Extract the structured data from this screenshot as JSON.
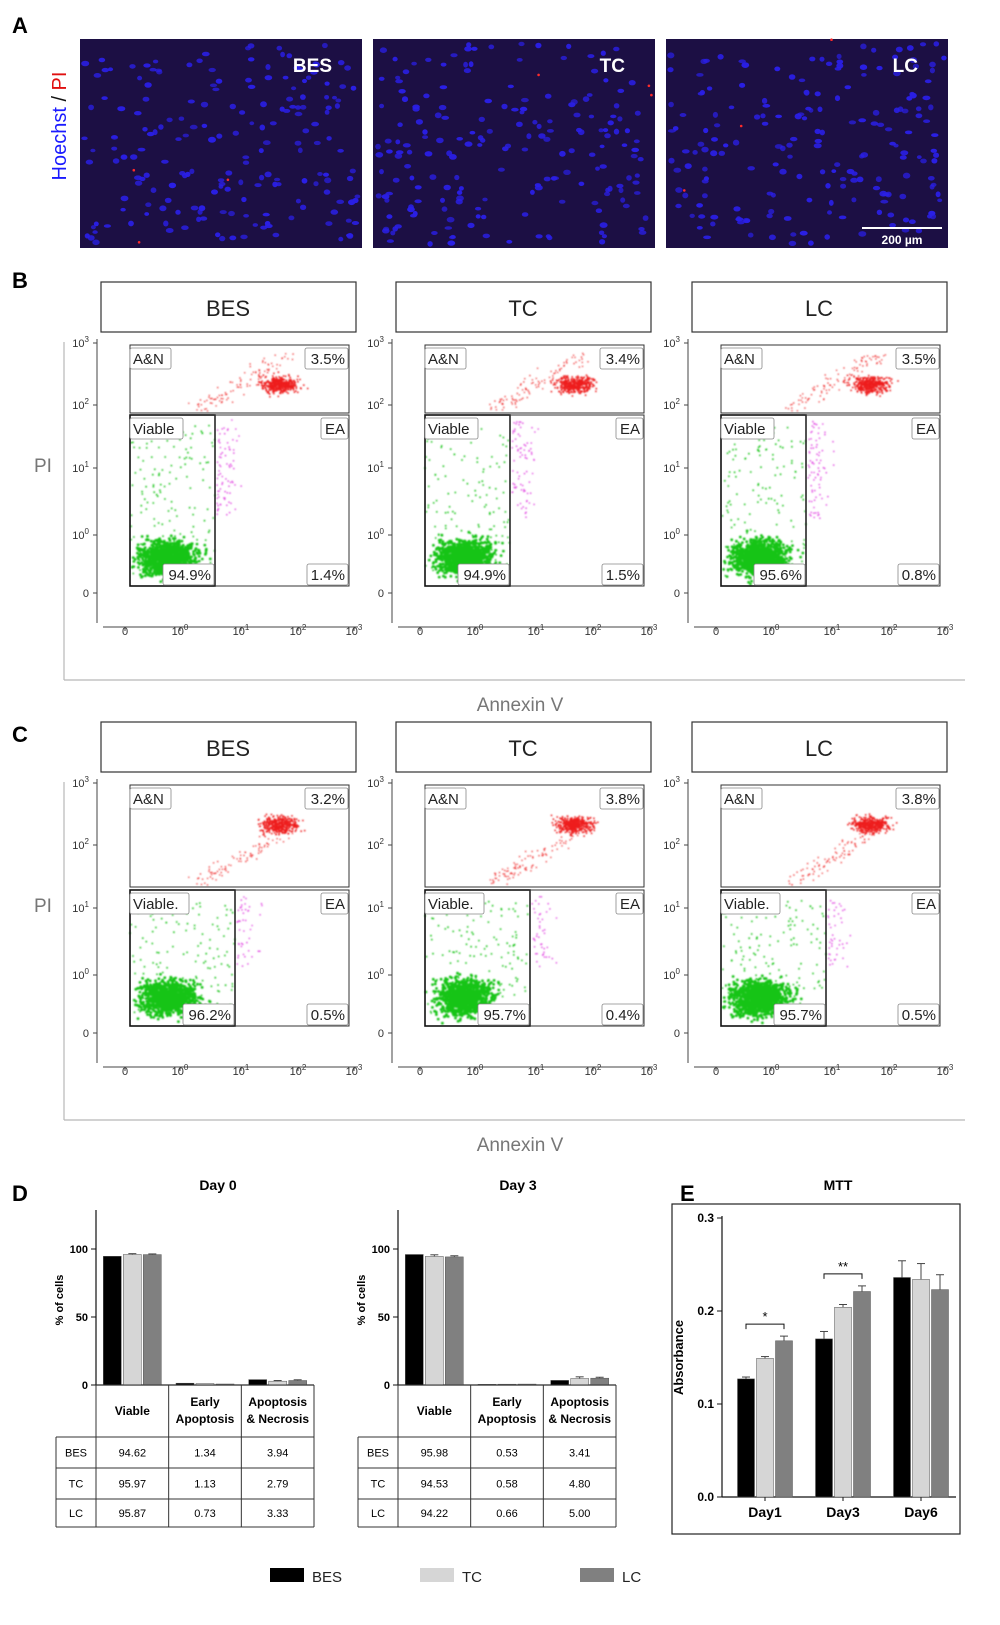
{
  "panel_labels": {
    "A": "A",
    "B": "B",
    "C": "C",
    "D": "D",
    "E": "E"
  },
  "panel_a": {
    "stain_label_hoechst": "Hoechst",
    "stain_label_sep": " / ",
    "stain_label_pi": "PI",
    "images": [
      {
        "label": "BES"
      },
      {
        "label": "TC"
      },
      {
        "label": "LC"
      }
    ],
    "scale_bar": "200 µm",
    "colors": {
      "nuclei": "#2a1fe6",
      "background": "#1c0f44"
    }
  },
  "flow_common": {
    "xlabel": "Annexin V",
    "ylabel": "PI",
    "x_ticks": [
      "0",
      "10",
      "10",
      "10",
      "10"
    ],
    "x_tick_exp": [
      "",
      "0",
      "1",
      "2",
      "3"
    ],
    "y_ticks": [
      "0",
      "10",
      "10",
      "10",
      "10"
    ],
    "y_tick_exp": [
      "",
      "0",
      "1",
      "2",
      "3"
    ],
    "gate_labels": {
      "an": "A&N",
      "viable": "Viable",
      "viable_c": "Viable.",
      "ea": "EA"
    },
    "colors": {
      "viable": "#19c419",
      "ea": "#e040e0",
      "an": "#ee1c1c"
    }
  },
  "panel_b": [
    {
      "title": "BES",
      "an": "3.5%",
      "viable": "94.9%",
      "ea": "1.4%"
    },
    {
      "title": "TC",
      "an": "3.4%",
      "viable": "94.9%",
      "ea": "1.5%"
    },
    {
      "title": "LC",
      "an": "3.5%",
      "viable": "95.6%",
      "ea": "0.8%"
    }
  ],
  "panel_c": [
    {
      "title": "BES",
      "an": "3.2%",
      "viable": "96.2%",
      "ea": "0.5%"
    },
    {
      "title": "TC",
      "an": "3.8%",
      "viable": "95.7%",
      "ea": "0.4%"
    },
    {
      "title": "LC",
      "an": "3.8%",
      "viable": "95.7%",
      "ea": "0.5%"
    }
  ],
  "chart_data": [
    {
      "type": "bar",
      "title": "Day 0",
      "ylabel": "% of cells",
      "ylim": [
        0,
        125
      ],
      "yticks": [
        0,
        50,
        100
      ],
      "categories": [
        "Viable",
        "Early Apoptosis",
        "Apoptosis & Necrosis"
      ],
      "category_lines": [
        [
          "Viable"
        ],
        [
          "Early",
          "Apoptosis"
        ],
        [
          "Apoptosis",
          "& Necrosis"
        ]
      ],
      "series": [
        {
          "name": "BES",
          "values": [
            94.62,
            1.34,
            3.94
          ],
          "labels": [
            "94.62",
            "1.34",
            "3.94"
          ],
          "err": [
            0,
            0,
            0
          ]
        },
        {
          "name": "TC",
          "values": [
            95.97,
            1.13,
            2.79
          ],
          "labels": [
            "95.97",
            "1.13",
            "2.79"
          ],
          "err": [
            0.6,
            0,
            0.5
          ]
        },
        {
          "name": "LC",
          "values": [
            95.87,
            0.73,
            3.33
          ],
          "labels": [
            "95.87",
            "0.73",
            "3.33"
          ],
          "err": [
            0.5,
            0,
            0.5
          ]
        }
      ]
    },
    {
      "type": "bar",
      "title": "Day 3",
      "ylabel": "% of cells",
      "ylim": [
        0,
        125
      ],
      "yticks": [
        0,
        50,
        100
      ],
      "categories": [
        "Viable",
        "Early Apoptosis",
        "Apoptosis & Necrosis"
      ],
      "category_lines": [
        [
          "Viable"
        ],
        [
          "Early",
          "Apoptosis"
        ],
        [
          "Apoptosis",
          "& Necrosis"
        ]
      ],
      "series": [
        {
          "name": "BES",
          "values": [
            95.98,
            0.53,
            3.41
          ],
          "labels": [
            "95.98",
            "0.53",
            "3.41"
          ],
          "err": [
            0,
            0,
            0
          ]
        },
        {
          "name": "TC",
          "values": [
            94.53,
            0.58,
            4.8
          ],
          "labels": [
            "94.53",
            "0.58",
            "4.80"
          ],
          "err": [
            1.2,
            0,
            1.2
          ]
        },
        {
          "name": "LC",
          "values": [
            94.22,
            0.66,
            5.0
          ],
          "labels": [
            "94.22",
            "0.66",
            "5.00"
          ],
          "err": [
            0.8,
            0,
            0.7
          ]
        }
      ]
    },
    {
      "type": "bar",
      "title": "MTT",
      "ylabel": "Absorbance",
      "ylim": [
        0,
        0.3
      ],
      "yticks": [
        "0.0",
        "0.1",
        "0.2",
        "0.3"
      ],
      "categories": [
        "Day1",
        "Day3",
        "Day6"
      ],
      "series": [
        {
          "name": "BES",
          "values": [
            0.127,
            0.17,
            0.236
          ],
          "err": [
            0.002,
            0.008,
            0.018
          ]
        },
        {
          "name": "TC",
          "values": [
            0.149,
            0.204,
            0.234
          ],
          "err": [
            0.002,
            0.003,
            0.017
          ]
        },
        {
          "name": "LC",
          "values": [
            0.168,
            0.221,
            0.223
          ],
          "err": [
            0.005,
            0.006,
            0.016
          ]
        }
      ],
      "significance": [
        {
          "category": "Day1",
          "label": "*"
        },
        {
          "category": "Day3",
          "label": "**"
        }
      ]
    }
  ],
  "legend": [
    {
      "name": "BES",
      "color": "#000000"
    },
    {
      "name": "TC",
      "color": "#d6d6d6"
    },
    {
      "name": "LC",
      "color": "#808080"
    }
  ]
}
